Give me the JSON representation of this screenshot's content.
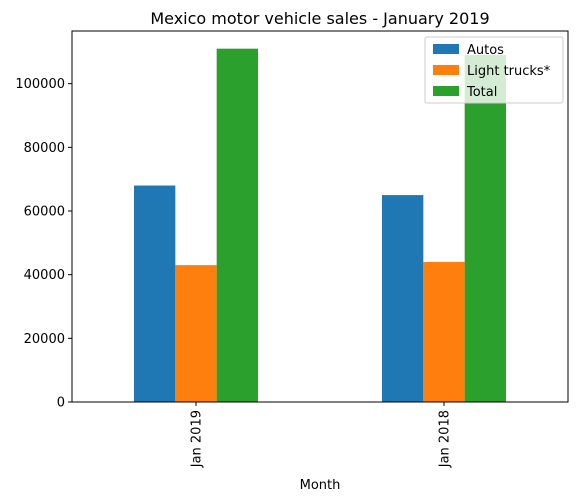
{
  "chart_data": {
    "type": "bar",
    "title": "Mexico motor vehicle sales - January 2019",
    "xlabel": "Month",
    "ylabel": "",
    "categories": [
      "Jan 2019",
      "Jan 2018"
    ],
    "series": [
      {
        "name": "Autos",
        "values": [
          68000,
          65000
        ],
        "color": "#1f77b4"
      },
      {
        "name": "Light trucks*",
        "values": [
          43000,
          44000
        ],
        "color": "#ff7f0e"
      },
      {
        "name": "Total",
        "values": [
          111000,
          109000
        ],
        "color": "#2ca02c"
      }
    ],
    "ylim": [
      0,
      116550
    ],
    "yticks": [
      0,
      20000,
      40000,
      60000,
      80000,
      100000
    ],
    "legend": "top-right",
    "grid": false
  }
}
